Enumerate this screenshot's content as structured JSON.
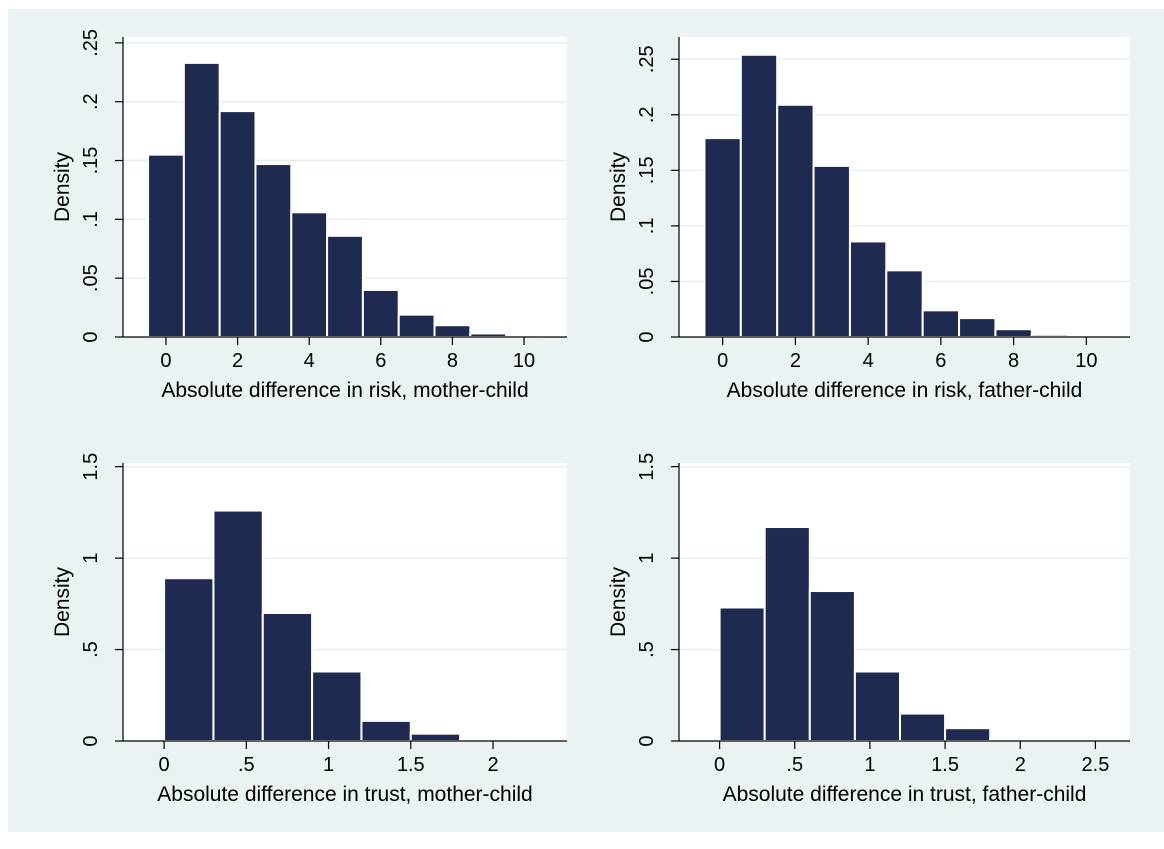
{
  "colors": {
    "bar_fill": "#1e2a4f",
    "bar_stroke": "#ffffff",
    "panel_background": "#eaf2f3",
    "plot_background": "#ffffff",
    "gridline": "#e6eef0",
    "axis": "#000000"
  },
  "chart_data": [
    {
      "type": "bar",
      "subtype": "histogram",
      "xlabel": "Absolute difference in risk, mother-child",
      "ylabel": "Density",
      "xlim": [
        -1.2,
        11.2
      ],
      "ylim": [
        0,
        0.255
      ],
      "xticks": [
        0,
        2,
        4,
        6,
        8,
        10
      ],
      "xtick_labels": [
        "0",
        "2",
        "4",
        "6",
        "8",
        "10"
      ],
      "yticks": [
        0,
        0.05,
        0.1,
        0.15,
        0.2,
        0.25
      ],
      "ytick_labels": [
        "0",
        ".05",
        ".1",
        ".15",
        ".2",
        ".25"
      ],
      "grid": true,
      "bin_edges": [
        -0.5,
        0.5,
        1.5,
        2.5,
        3.5,
        4.5,
        5.5,
        6.5,
        7.5,
        8.5,
        9.5,
        10.5
      ],
      "values": [
        0.155,
        0.233,
        0.192,
        0.147,
        0.106,
        0.086,
        0.04,
        0.019,
        0.01,
        0.003,
        0.0005
      ]
    },
    {
      "type": "bar",
      "subtype": "histogram",
      "xlabel": "Absolute difference in risk, father-child",
      "ylabel": "Density",
      "xlim": [
        -1.2,
        11.2
      ],
      "ylim": [
        0,
        0.27
      ],
      "xticks": [
        0,
        2,
        4,
        6,
        8,
        10
      ],
      "xtick_labels": [
        "0",
        "2",
        "4",
        "6",
        "8",
        "10"
      ],
      "yticks": [
        0,
        0.05,
        0.1,
        0.15,
        0.2,
        0.25
      ],
      "ytick_labels": [
        "0",
        ".05",
        ".1",
        ".15",
        ".2",
        ".25"
      ],
      "grid": true,
      "bin_edges": [
        -0.5,
        0.5,
        1.5,
        2.5,
        3.5,
        4.5,
        5.5,
        6.5,
        7.5,
        8.5,
        9.5,
        10.5
      ],
      "values": [
        0.179,
        0.254,
        0.209,
        0.154,
        0.086,
        0.06,
        0.024,
        0.017,
        0.007,
        0.002,
        0.0005
      ]
    },
    {
      "type": "bar",
      "subtype": "histogram",
      "xlabel": "Absolute difference in trust, mother-child",
      "ylabel": "Density",
      "xlim": [
        -0.25,
        2.45
      ],
      "ylim": [
        0,
        1.52
      ],
      "xticks": [
        0,
        0.5,
        1,
        1.5,
        2
      ],
      "xtick_labels": [
        "0",
        ".5",
        "1",
        "1.5",
        "2"
      ],
      "yticks": [
        0,
        0.5,
        1,
        1.5
      ],
      "ytick_labels": [
        "0",
        ".5",
        "1",
        "1.5"
      ],
      "grid": true,
      "bin_edges": [
        0,
        0.3,
        0.6,
        0.9,
        1.2,
        1.5,
        1.8,
        2.1
      ],
      "values": [
        0.89,
        1.26,
        0.7,
        0.38,
        0.11,
        0.04,
        0.01
      ]
    },
    {
      "type": "bar",
      "subtype": "histogram",
      "xlabel": "Absolute difference in trust, father-child",
      "ylabel": "Density",
      "xlim": [
        -0.27,
        2.73
      ],
      "ylim": [
        0,
        1.52
      ],
      "xticks": [
        0,
        0.5,
        1,
        1.5,
        2,
        2.5
      ],
      "xtick_labels": [
        "0",
        ".5",
        "1",
        "1.5",
        "2",
        "2.5"
      ],
      "yticks": [
        0,
        0.5,
        1,
        1.5
      ],
      "ytick_labels": [
        "0",
        ".5",
        "1",
        "1.5"
      ],
      "grid": true,
      "bin_edges": [
        0,
        0.3,
        0.6,
        0.9,
        1.2,
        1.5,
        1.8,
        2.1,
        2.4,
        2.7
      ],
      "values": [
        0.73,
        1.17,
        0.82,
        0.38,
        0.15,
        0.07,
        0.01,
        0.003,
        0.002
      ]
    }
  ]
}
